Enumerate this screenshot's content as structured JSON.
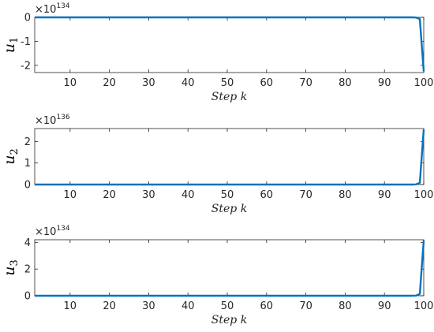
{
  "chart_data": [
    {
      "type": "line",
      "ylabel": "u",
      "ylabel_sub": "1",
      "xlabel": "Step k",
      "exponent_base": "×10",
      "exponent_power": "134",
      "xlim": [
        1,
        100
      ],
      "ylim": [
        -2.3,
        0
      ],
      "xticks": [
        10,
        20,
        30,
        40,
        50,
        60,
        70,
        80,
        90,
        100
      ],
      "yticks": [
        0,
        -1,
        -2
      ],
      "ytick_labels": [
        "0",
        "-1",
        "-2"
      ],
      "x": [
        1,
        97,
        98,
        99,
        100
      ],
      "y": [
        0,
        0,
        -0.005,
        -0.07,
        -2.25
      ],
      "color": "#0072BD",
      "grid": false
    },
    {
      "type": "line",
      "ylabel": "u",
      "ylabel_sub": "2",
      "xlabel": "Step k",
      "exponent_base": "×10",
      "exponent_power": "136",
      "xlim": [
        1,
        100
      ],
      "ylim": [
        0,
        2.6
      ],
      "xticks": [
        10,
        20,
        30,
        40,
        50,
        60,
        70,
        80,
        90,
        100
      ],
      "yticks": [
        0,
        1,
        2
      ],
      "ytick_labels": [
        "0",
        "1",
        "2"
      ],
      "x": [
        1,
        97,
        98,
        99,
        100
      ],
      "y": [
        0,
        0,
        0.005,
        0.08,
        2.55
      ],
      "color": "#0072BD",
      "grid": false
    },
    {
      "type": "line",
      "ylabel": "u",
      "ylabel_sub": "3",
      "xlabel": "Step k",
      "exponent_base": "×10",
      "exponent_power": "134",
      "xlim": [
        1,
        100
      ],
      "ylim": [
        0,
        4.2
      ],
      "xticks": [
        10,
        20,
        30,
        40,
        50,
        60,
        70,
        80,
        90,
        100
      ],
      "yticks": [
        0,
        2,
        4
      ],
      "ytick_labels": [
        "0",
        "2",
        "4"
      ],
      "x": [
        1,
        97,
        98,
        99,
        100
      ],
      "y": [
        0,
        0,
        0.01,
        0.13,
        4.15
      ],
      "color": "#0072BD",
      "grid": false
    }
  ]
}
